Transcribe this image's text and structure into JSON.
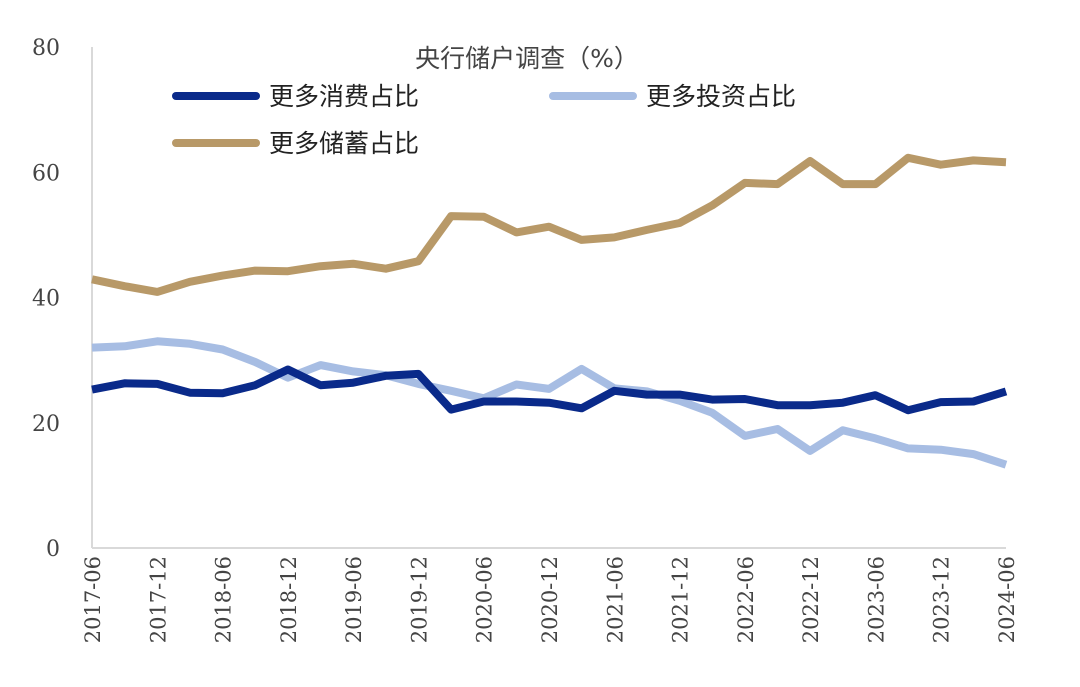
{
  "chart_data": {
    "type": "line",
    "title": "央行储户调查（%）",
    "xlabel": "",
    "ylabel": "",
    "ylim": [
      0,
      80
    ],
    "yticks": [
      "0",
      "20",
      "40",
      "60",
      "80"
    ],
    "grid": false,
    "legend_position": "top",
    "x": [
      "2017-06",
      "2017-09",
      "2017-12",
      "2018-03",
      "2018-06",
      "2018-09",
      "2018-12",
      "2019-03",
      "2019-06",
      "2019-09",
      "2019-12",
      "2020-03",
      "2020-06",
      "2020-09",
      "2020-12",
      "2021-03",
      "2021-06",
      "2021-09",
      "2021-12",
      "2022-03",
      "2022-06",
      "2022-09",
      "2022-12",
      "2023-03",
      "2023-06",
      "2023-09",
      "2023-12",
      "2024-03",
      "2024-06"
    ],
    "xtick_labels": [
      "2017-06",
      "2017-12",
      "2018-06",
      "2018-12",
      "2019-06",
      "2019-12",
      "2020-06",
      "2020-12",
      "2021-06",
      "2021-12",
      "2022-06",
      "2022-12",
      "2023-06",
      "2023-12",
      "2024-06"
    ],
    "series": [
      {
        "name": "更多消费占比",
        "color": "#0a2a8a",
        "values": [
          25.3,
          26.3,
          26.2,
          24.8,
          24.7,
          26.0,
          28.5,
          26.0,
          26.4,
          27.5,
          27.8,
          22.1,
          23.4,
          23.4,
          23.2,
          22.3,
          25.1,
          24.5,
          24.5,
          23.7,
          23.8,
          22.8,
          22.8,
          23.2,
          24.4,
          22.0,
          23.3,
          23.4,
          25.0
        ]
      },
      {
        "name": "更多投资占比",
        "color": "#a7bde3",
        "values": [
          32.0,
          32.2,
          33.0,
          32.6,
          31.7,
          29.7,
          27.2,
          29.2,
          28.2,
          27.6,
          26.2,
          25.1,
          23.9,
          26.1,
          25.4,
          28.6,
          25.5,
          25.0,
          23.5,
          21.6,
          17.9,
          19.0,
          15.5,
          18.8,
          17.5,
          15.9,
          15.7,
          15.0,
          13.3
        ]
      },
      {
        "name": "更多储蓄占比",
        "color": "#b89968",
        "values": [
          42.9,
          41.8,
          40.9,
          42.5,
          43.5,
          44.3,
          44.2,
          45.0,
          45.4,
          44.6,
          45.8,
          53.0,
          52.9,
          50.4,
          51.3,
          49.2,
          49.6,
          50.8,
          51.9,
          54.7,
          58.3,
          58.1,
          61.8,
          58.1,
          58.1,
          62.3,
          61.2,
          61.9,
          61.6
        ]
      }
    ]
  }
}
